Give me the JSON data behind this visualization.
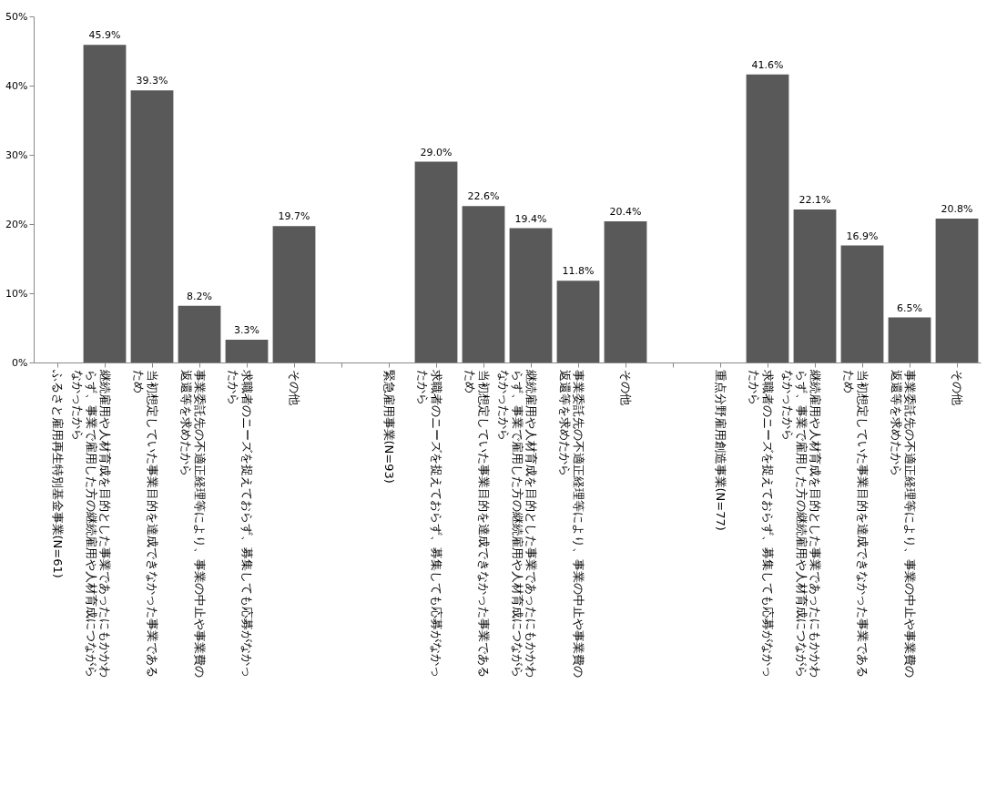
{
  "chart_data": {
    "type": "bar",
    "categories": [
      "ふるさと雇用再生特別基金事業(N=61)",
      "継続雇用や人材育成を目的とした事業であったにもかかわらず、事業で雇用した方の継続雇用や人材育成につながらなかったから",
      "当初想定していた事業目的を達成できなかった事業であるため",
      "事業委託先の不適正経理等により、事業の中止や事業費の返還等を求めたから",
      "求職者のニーズを捉えておらず、募集しても応募がなかったから",
      "その他",
      null,
      "緊急雇用事業(N=93)",
      "求職者のニーズを捉えておらず、募集しても応募がなかったから",
      "当初想定していた事業目的を達成できなかった事業であるため",
      "継続雇用や人材育成を目的とした事業であったにもかかわらず、事業で雇用した方の継続雇用や人材育成につながらなかったから",
      "事業委託先の不適正経理等により、事業の中止や事業費の返還等を求めたから",
      "その他",
      null,
      "重点分野雇用創造事業(N=77)",
      "求職者のニーズを捉えておらず、募集しても応募がなかったから",
      "継続雇用や人材育成を目的とした事業であったにもかかわらず、事業で雇用した方の継続雇用や人材育成につながらなかったから",
      "当初想定していた事業目的を達成できなかった事業であるため",
      "事業委託先の不適正経理等により、事業の中止や事業費の返還等を求めたから",
      "その他"
    ],
    "values": [
      null,
      45.9,
      39.3,
      8.2,
      3.3,
      19.7,
      null,
      null,
      29.0,
      22.6,
      19.4,
      11.8,
      20.4,
      null,
      null,
      41.6,
      22.1,
      16.9,
      6.5,
      20.8
    ],
    "value_labels": [
      null,
      "45.9%",
      "39.3%",
      "8.2%",
      "3.3%",
      "19.7%",
      null,
      null,
      "29.0%",
      "22.6%",
      "19.4%",
      "11.8%",
      "20.4%",
      null,
      null,
      "41.6%",
      "22.1%",
      "16.9%",
      "6.5%",
      "20.8%"
    ],
    "color": "#595959",
    "ylim": [
      0,
      50
    ],
    "yticks": [
      {
        "value": 0,
        "label": "0%"
      },
      {
        "value": 10,
        "label": "10%"
      },
      {
        "value": 20,
        "label": "20%"
      },
      {
        "value": 30,
        "label": "30%"
      },
      {
        "value": 40,
        "label": "40%"
      },
      {
        "value": 50,
        "label": "50%"
      }
    ],
    "grid": false
  }
}
